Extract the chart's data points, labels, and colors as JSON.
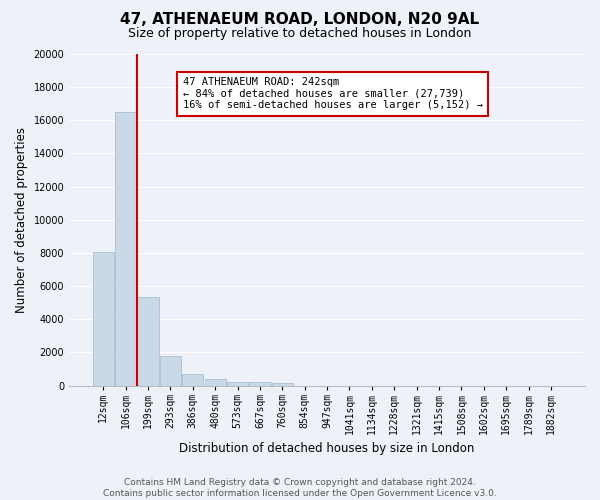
{
  "title": "47, ATHENAEUM ROAD, LONDON, N20 9AL",
  "subtitle": "Size of property relative to detached houses in London",
  "xlabel": "Distribution of detached houses by size in London",
  "ylabel": "Number of detached properties",
  "bar_labels": [
    "12sqm",
    "106sqm",
    "199sqm",
    "293sqm",
    "386sqm",
    "480sqm",
    "573sqm",
    "667sqm",
    "760sqm",
    "854sqm",
    "947sqm",
    "1041sqm",
    "1134sqm",
    "1228sqm",
    "1321sqm",
    "1415sqm",
    "1508sqm",
    "1602sqm",
    "1695sqm",
    "1789sqm",
    "1882sqm"
  ],
  "bar_values": [
    8050,
    16500,
    5350,
    1800,
    700,
    380,
    230,
    190,
    130,
    0,
    0,
    0,
    0,
    0,
    0,
    0,
    0,
    0,
    0,
    0,
    0
  ],
  "bar_color": "#c9d9e8",
  "bar_edgecolor": "#a0b8cc",
  "vline_x": 1.5,
  "vline_color": "#cc0000",
  "ylim": [
    0,
    20000
  ],
  "yticks": [
    0,
    2000,
    4000,
    6000,
    8000,
    10000,
    12000,
    14000,
    16000,
    18000,
    20000
  ],
  "annotation_text": "47 ATHENAEUM ROAD: 242sqm\n← 84% of detached houses are smaller (27,739)\n16% of semi-detached houses are larger (5,152) →",
  "annotation_box_color": "#ffffff",
  "annotation_box_edgecolor": "#cc0000",
  "background_color": "#eef2f8",
  "grid_color": "#ffffff",
  "footer_line1": "Contains HM Land Registry data © Crown copyright and database right 2024.",
  "footer_line2": "Contains public sector information licensed under the Open Government Licence v3.0.",
  "title_fontsize": 11,
  "subtitle_fontsize": 9,
  "axis_label_fontsize": 8.5,
  "tick_fontsize": 7,
  "annotation_fontsize": 7.5,
  "footer_fontsize": 6.5
}
